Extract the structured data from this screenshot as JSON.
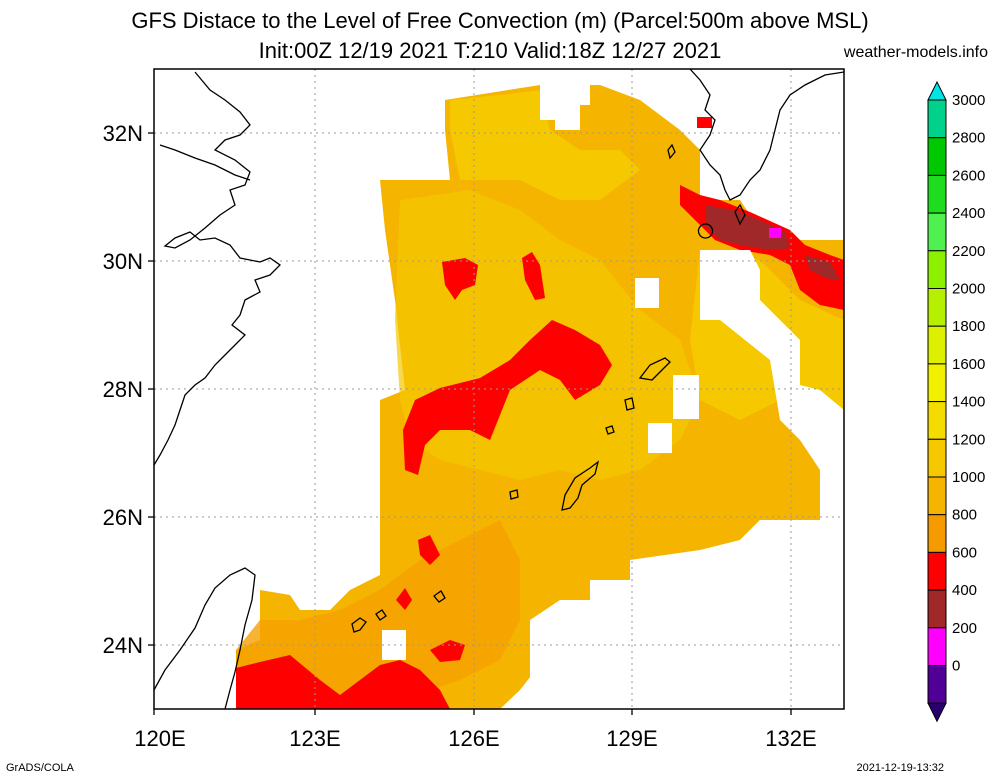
{
  "title_line1": "GFS Distace to the Level of Free Convection (m) (Parcel:500m above MSL)",
  "title_line2": "Init:00Z 12/19 2021 T:210 Valid:18Z 12/27 2021",
  "site": "weather-models.info",
  "footer_left": "GrADS/COLA",
  "footer_right": "2021-12-19-13:32",
  "axes": {
    "lon_labels": [
      "120E",
      "123E",
      "126E",
      "129E",
      "132E"
    ],
    "lat_labels": [
      "32N",
      "30N",
      "28N",
      "26N",
      "24N"
    ]
  },
  "colorbar": {
    "levels": [
      "3000",
      "2800",
      "2600",
      "2400",
      "2200",
      "2000",
      "1800",
      "1600",
      "1400",
      "1200",
      "1000",
      "800",
      "600",
      "400",
      "200",
      "0"
    ],
    "colors": [
      "#00e6e6",
      "#00d28c",
      "#00c800",
      "#1edc1e",
      "#50f050",
      "#8cf000",
      "#b4f000",
      "#dcf000",
      "#f0f000",
      "#f5dc00",
      "#f5c800",
      "#f5b400",
      "#f59b00",
      "#ff0000",
      "#a02828",
      "#ff00ff",
      "#500096",
      "#28006e"
    ]
  }
}
